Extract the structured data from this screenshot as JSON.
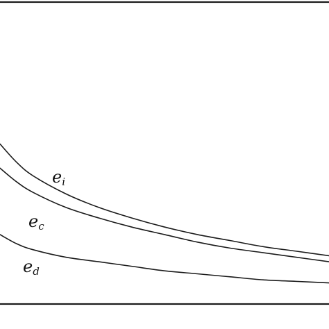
{
  "chart_data": {
    "type": "line",
    "title": "",
    "xlabel": "",
    "ylabel": "",
    "grid": false,
    "legend": "none",
    "series": [
      {
        "name": "e_i",
        "label_base": "e",
        "label_sub": "i",
        "color": "#1a1a1a",
        "x": [
          0,
          0.05,
          0.1,
          0.2,
          0.3,
          0.4,
          0.5,
          0.6,
          0.7,
          0.8,
          0.9,
          1.0
        ],
        "y": [
          0.53,
          0.47,
          0.425,
          0.365,
          0.32,
          0.285,
          0.255,
          0.23,
          0.21,
          0.19,
          0.175,
          0.16
        ]
      },
      {
        "name": "e_c",
        "label_base": "e",
        "label_sub": "c",
        "color": "#1a1a1a",
        "x": [
          0,
          0.05,
          0.1,
          0.2,
          0.3,
          0.4,
          0.5,
          0.6,
          0.7,
          0.8,
          0.9,
          1.0
        ],
        "y": [
          0.45,
          0.405,
          0.37,
          0.32,
          0.285,
          0.255,
          0.23,
          0.205,
          0.185,
          0.17,
          0.155,
          0.14
        ]
      },
      {
        "name": "e_d",
        "label_base": "e",
        "label_sub": "d",
        "color": "#1a1a1a",
        "x": [
          0,
          0.05,
          0.1,
          0.2,
          0.3,
          0.4,
          0.5,
          0.6,
          0.7,
          0.8,
          0.9,
          1.0
        ],
        "y": [
          0.23,
          0.2,
          0.18,
          0.155,
          0.14,
          0.125,
          0.11,
          0.1,
          0.09,
          0.08,
          0.075,
          0.07
        ]
      }
    ],
    "xlim": [
      0,
      1
    ],
    "ylim": [
      0,
      1
    ]
  }
}
